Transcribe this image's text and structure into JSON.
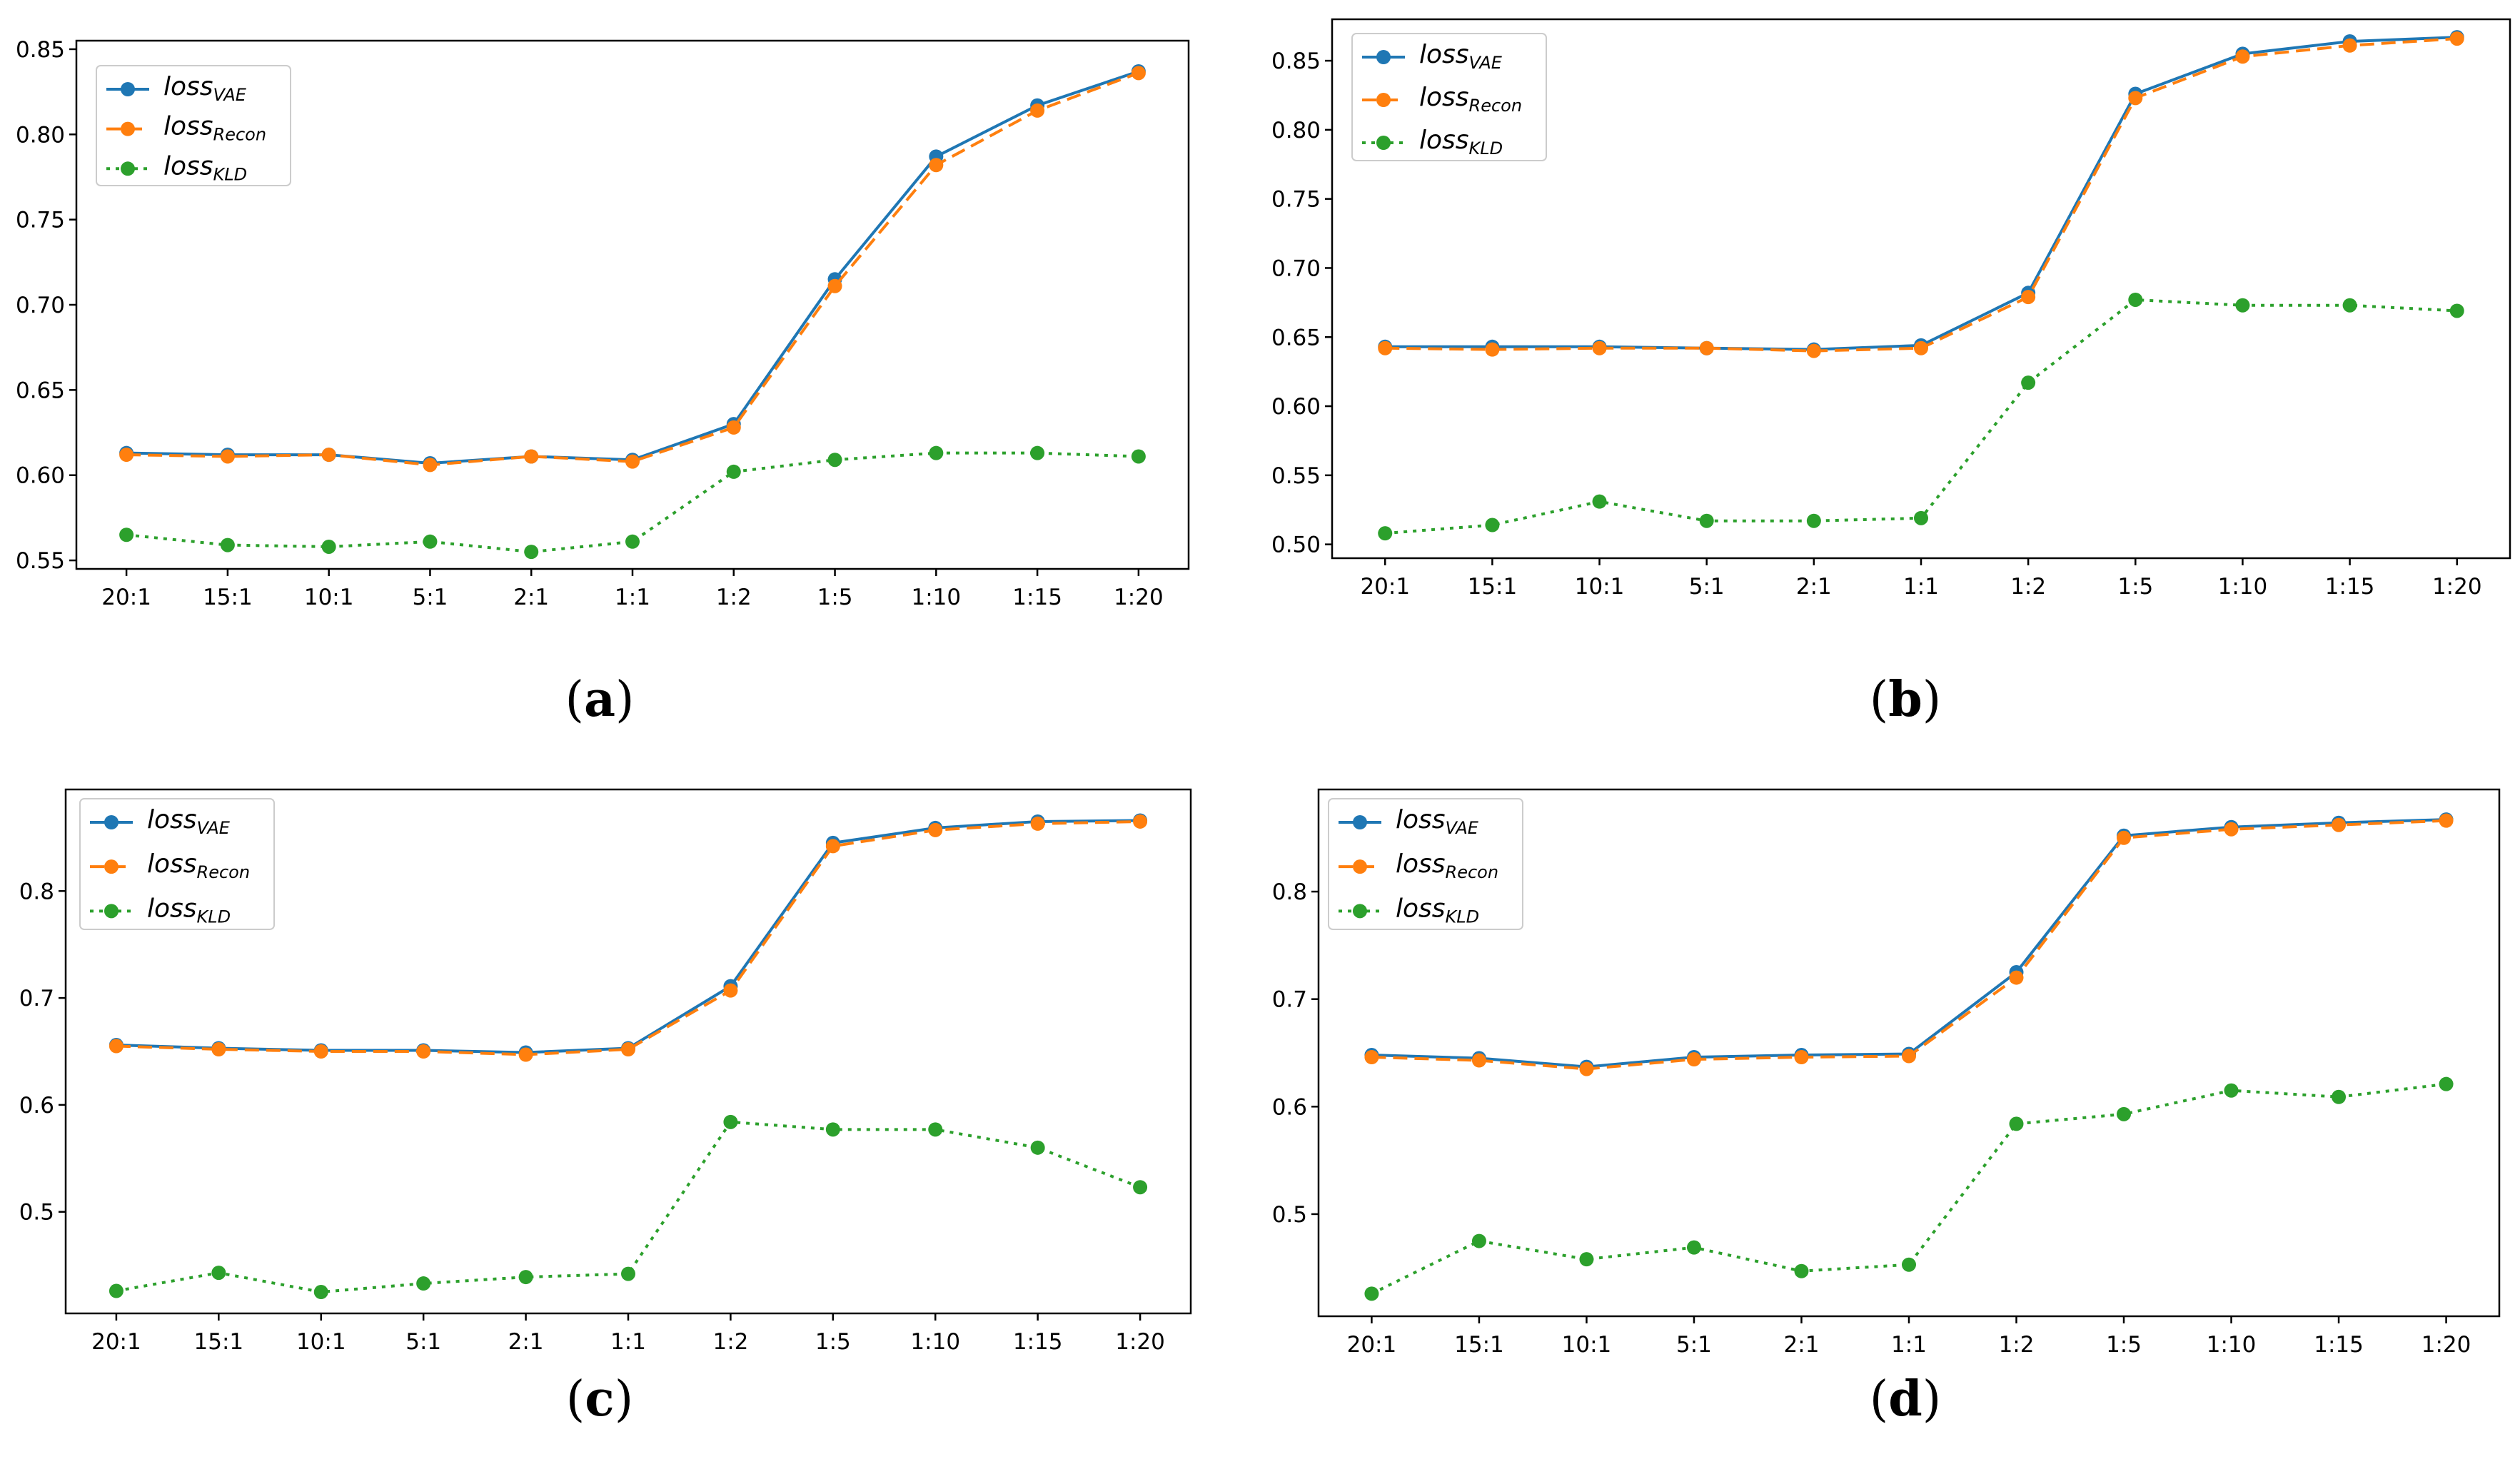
{
  "colors": {
    "vae": "#1f77b4",
    "recon": "#ff7f0e",
    "kld": "#2ca02c"
  },
  "legend": [
    {
      "base": "loss",
      "sub": "VAE",
      "key": "vae",
      "style": "solid"
    },
    {
      "base": "loss",
      "sub": "Recon",
      "key": "recon",
      "style": "dashed"
    },
    {
      "base": "loss",
      "sub": "KLD",
      "key": "kld",
      "style": "dotted"
    }
  ],
  "captions": [
    "a",
    "b",
    "c",
    "d"
  ],
  "chart_data": [
    {
      "type": "line",
      "panel": "a",
      "categories": [
        "20:1",
        "15:1",
        "10:1",
        "5:1",
        "2:1",
        "1:1",
        "1:2",
        "1:5",
        "1:10",
        "1:15",
        "1:20"
      ],
      "ylim": [
        0.545,
        0.855
      ],
      "yticks": [
        0.55,
        0.6,
        0.65,
        0.7,
        0.75,
        0.8,
        0.85
      ],
      "ytick_labels": [
        "0.55",
        "0.60",
        "0.65",
        "0.70",
        "0.75",
        "0.80",
        "0.85"
      ],
      "series": [
        {
          "name": "lossVAE",
          "key": "vae",
          "values": [
            0.613,
            0.612,
            0.612,
            0.607,
            0.611,
            0.609,
            0.63,
            0.715,
            0.787,
            0.817,
            0.837
          ]
        },
        {
          "name": "lossRecon",
          "key": "recon",
          "values": [
            0.612,
            0.611,
            0.612,
            0.606,
            0.611,
            0.608,
            0.628,
            0.711,
            0.782,
            0.814,
            0.836
          ]
        },
        {
          "name": "lossKLD",
          "key": "kld",
          "values": [
            0.565,
            0.559,
            0.558,
            0.561,
            0.555,
            0.561,
            0.602,
            0.609,
            0.613,
            0.613,
            0.611
          ]
        }
      ]
    },
    {
      "type": "line",
      "panel": "b",
      "categories": [
        "20:1",
        "15:1",
        "10:1",
        "5:1",
        "2:1",
        "1:1",
        "1:2",
        "1:5",
        "1:10",
        "1:15",
        "1:20"
      ],
      "ylim": [
        0.49,
        0.88
      ],
      "yticks": [
        0.5,
        0.55,
        0.6,
        0.65,
        0.7,
        0.75,
        0.8,
        0.85
      ],
      "ytick_labels": [
        "0.50",
        "0.55",
        "0.60",
        "0.65",
        "0.70",
        "0.75",
        "0.80",
        "0.85"
      ],
      "series": [
        {
          "name": "lossVAE",
          "key": "vae",
          "values": [
            0.643,
            0.643,
            0.643,
            0.642,
            0.641,
            0.644,
            0.682,
            0.826,
            0.855,
            0.864,
            0.867
          ]
        },
        {
          "name": "lossRecon",
          "key": "recon",
          "values": [
            0.642,
            0.641,
            0.642,
            0.642,
            0.64,
            0.642,
            0.679,
            0.823,
            0.853,
            0.861,
            0.866
          ]
        },
        {
          "name": "lossKLD",
          "key": "kld",
          "values": [
            0.508,
            0.514,
            0.531,
            0.517,
            0.517,
            0.519,
            0.617,
            0.677,
            0.673,
            0.673,
            0.669
          ]
        }
      ]
    },
    {
      "type": "line",
      "panel": "c",
      "categories": [
        "20:1",
        "15:1",
        "10:1",
        "5:1",
        "2:1",
        "1:1",
        "1:2",
        "1:5",
        "1:10",
        "1:15",
        "1:20"
      ],
      "ylim": [
        0.405,
        0.895
      ],
      "yticks": [
        0.5,
        0.6,
        0.7,
        0.8
      ],
      "ytick_labels": [
        "0.5",
        "0.6",
        "0.7",
        "0.8"
      ],
      "series": [
        {
          "name": "lossVAE",
          "key": "vae",
          "values": [
            0.656,
            0.653,
            0.651,
            0.651,
            0.649,
            0.653,
            0.711,
            0.845,
            0.859,
            0.865,
            0.866
          ]
        },
        {
          "name": "lossRecon",
          "key": "recon",
          "values": [
            0.655,
            0.652,
            0.65,
            0.65,
            0.647,
            0.652,
            0.707,
            0.842,
            0.857,
            0.863,
            0.865
          ]
        },
        {
          "name": "lossKLD",
          "key": "kld",
          "values": [
            0.426,
            0.443,
            0.425,
            0.433,
            0.439,
            0.442,
            0.584,
            0.577,
            0.577,
            0.56,
            0.523
          ]
        }
      ]
    },
    {
      "type": "line",
      "panel": "d",
      "categories": [
        "20:1",
        "15:1",
        "10:1",
        "5:1",
        "2:1",
        "1:1",
        "1:2",
        "1:5",
        "1:10",
        "1:15",
        "1:20"
      ],
      "ylim": [
        0.405,
        0.895
      ],
      "yticks": [
        0.5,
        0.6,
        0.7,
        0.8
      ],
      "ytick_labels": [
        "0.5",
        "0.6",
        "0.7",
        "0.8"
      ],
      "series": [
        {
          "name": "lossVAE",
          "key": "vae",
          "values": [
            0.648,
            0.645,
            0.637,
            0.646,
            0.648,
            0.649,
            0.725,
            0.852,
            0.86,
            0.864,
            0.867
          ]
        },
        {
          "name": "lossRecon",
          "key": "recon",
          "values": [
            0.646,
            0.643,
            0.635,
            0.644,
            0.646,
            0.647,
            0.72,
            0.85,
            0.858,
            0.862,
            0.866
          ]
        },
        {
          "name": "lossKLD",
          "key": "kld",
          "values": [
            0.426,
            0.475,
            0.458,
            0.469,
            0.447,
            0.453,
            0.584,
            0.593,
            0.615,
            0.609,
            0.621
          ]
        }
      ]
    }
  ]
}
